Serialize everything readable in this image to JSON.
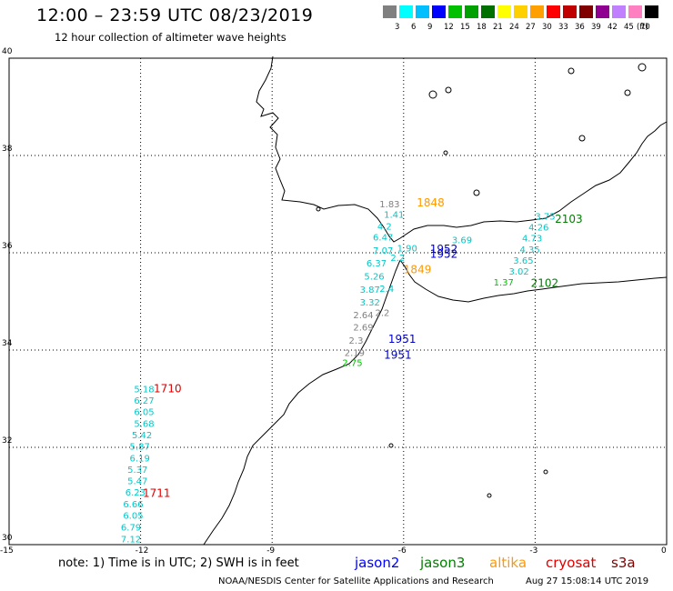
{
  "header": {
    "title": "12:00 – 23:59 UTC 08/23/2019",
    "subtitle": "12 hour collection of altimeter wave heights"
  },
  "legend": {
    "colors": [
      "#808080",
      "#00ffff",
      "#00bfff",
      "#0000ff",
      "#00c000",
      "#00a000",
      "#007000",
      "#ffff00",
      "#ffd000",
      "#ffa000",
      "#ff0000",
      "#c00000",
      "#800000",
      "#900090",
      "#c080ff",
      "#ff80c0",
      "#000000"
    ],
    "ticks": [
      "3",
      "6",
      "9",
      "12",
      "15",
      "18",
      "21",
      "24",
      "27",
      "30",
      "33",
      "36",
      "39",
      "42",
      "45",
      "70"
    ],
    "unit": "(ft)"
  },
  "axes": {
    "lon_ticks": [
      "-15",
      "-12",
      "-9",
      "-6",
      "-3",
      "0"
    ],
    "lat_ticks": [
      "40",
      "38",
      "36",
      "34",
      "32",
      "30"
    ],
    "lon_range": [
      -15,
      0
    ],
    "lat_range": [
      30,
      40
    ]
  },
  "observations": [
    {
      "lon": -6.55,
      "lat": 36.93,
      "text": "1.83",
      "color": "#808080"
    },
    {
      "lon": -6.45,
      "lat": 36.72,
      "text": "1.41",
      "color": "#00c8c8"
    },
    {
      "lon": -6.6,
      "lat": 36.48,
      "text": "4.2",
      "color": "#00c8c8"
    },
    {
      "lon": -6.7,
      "lat": 36.25,
      "text": "6.47",
      "color": "#00c8c8"
    },
    {
      "lon": -6.7,
      "lat": 35.98,
      "text": "7.07",
      "color": "#00c8c8"
    },
    {
      "lon": -6.85,
      "lat": 35.72,
      "text": "6.37",
      "color": "#00c8c8"
    },
    {
      "lon": -6.9,
      "lat": 35.45,
      "text": "5.26",
      "color": "#00c8c8"
    },
    {
      "lon": -7.0,
      "lat": 35.18,
      "text": "3.87",
      "color": "#00c8c8"
    },
    {
      "lon": -7.0,
      "lat": 34.92,
      "text": "3.32",
      "color": "#00c8c8"
    },
    {
      "lon": -7.15,
      "lat": 34.65,
      "text": "2.64",
      "color": "#808080"
    },
    {
      "lon": -7.15,
      "lat": 34.4,
      "text": "2.69",
      "color": "#808080"
    },
    {
      "lon": -7.25,
      "lat": 34.13,
      "text": "2.3",
      "color": "#808080"
    },
    {
      "lon": -7.35,
      "lat": 33.88,
      "text": "2.19",
      "color": "#808080"
    },
    {
      "lon": -7.4,
      "lat": 33.67,
      "text": "2.75",
      "color": "#00c000"
    },
    {
      "lon": -6.65,
      "lat": 34.7,
      "text": "2.2",
      "color": "#808080"
    },
    {
      "lon": -6.55,
      "lat": 35.2,
      "text": "2.4",
      "color": "#00c8c8"
    },
    {
      "lon": -6.15,
      "lat": 36.03,
      "text": "1.90",
      "color": "#00c8c8"
    },
    {
      "lon": -6.3,
      "lat": 35.83,
      "text": "2.2",
      "color": "#00c8c8"
    },
    {
      "lon": -4.9,
      "lat": 36.2,
      "text": "3.69",
      "color": "#00c8c8"
    },
    {
      "lon": -3.0,
      "lat": 36.68,
      "text": "3.75",
      "color": "#00c8c8"
    },
    {
      "lon": -3.15,
      "lat": 36.46,
      "text": "4.26",
      "color": "#00c8c8"
    },
    {
      "lon": -3.3,
      "lat": 36.23,
      "text": "4.73",
      "color": "#00c8c8"
    },
    {
      "lon": -3.35,
      "lat": 36.0,
      "text": "4.35",
      "color": "#00c8c8"
    },
    {
      "lon": -3.5,
      "lat": 35.78,
      "text": "3.65",
      "color": "#00c8c8"
    },
    {
      "lon": -3.6,
      "lat": 35.55,
      "text": "3.02",
      "color": "#00c8c8"
    },
    {
      "lon": -3.95,
      "lat": 35.33,
      "text": "1.37",
      "color": "#00c000"
    },
    {
      "lon": -12.15,
      "lat": 33.13,
      "text": "5.18",
      "color": "#00c8c8"
    },
    {
      "lon": -12.15,
      "lat": 32.9,
      "text": "6.27",
      "color": "#00c8c8"
    },
    {
      "lon": -12.15,
      "lat": 32.66,
      "text": "6.05",
      "color": "#00c8c8"
    },
    {
      "lon": -12.15,
      "lat": 32.42,
      "text": "5.68",
      "color": "#00c8c8"
    },
    {
      "lon": -12.2,
      "lat": 32.19,
      "text": "5.42",
      "color": "#00c8c8"
    },
    {
      "lon": -12.25,
      "lat": 31.95,
      "text": "5.87",
      "color": "#00c8c8"
    },
    {
      "lon": -12.25,
      "lat": 31.71,
      "text": "6.19",
      "color": "#00c8c8"
    },
    {
      "lon": -12.3,
      "lat": 31.48,
      "text": "5.37",
      "color": "#00c8c8"
    },
    {
      "lon": -12.3,
      "lat": 31.24,
      "text": "5.47",
      "color": "#00c8c8"
    },
    {
      "lon": -12.35,
      "lat": 31.01,
      "text": "6.23",
      "color": "#00c8c8"
    },
    {
      "lon": -12.4,
      "lat": 30.77,
      "text": "6.66",
      "color": "#00c8c8"
    },
    {
      "lon": -12.4,
      "lat": 30.53,
      "text": "6.05",
      "color": "#00c8c8"
    },
    {
      "lon": -12.45,
      "lat": 30.29,
      "text": "6.79",
      "color": "#00c8c8"
    },
    {
      "lon": -12.45,
      "lat": 30.05,
      "text": "7.12",
      "color": "#00c8c8"
    }
  ],
  "time_labels": [
    {
      "lon": -5.7,
      "lat": 36.95,
      "text": "1848",
      "color": "#ff9900"
    },
    {
      "lon": -6.0,
      "lat": 35.58,
      "text": "1849",
      "color": "#ff9900"
    },
    {
      "lon": -5.4,
      "lat": 36.0,
      "text": "1952",
      "color": "#0000c8"
    },
    {
      "lon": -5.4,
      "lat": 35.9,
      "text": "1952",
      "color": "#0000c8"
    },
    {
      "lon": -6.35,
      "lat": 34.15,
      "text": "1951",
      "color": "#0000c8"
    },
    {
      "lon": -6.45,
      "lat": 33.82,
      "text": "1951",
      "color": "#0000c8"
    },
    {
      "lon": -2.55,
      "lat": 36.62,
      "text": "2103",
      "color": "#008000"
    },
    {
      "lon": -3.1,
      "lat": 35.3,
      "text": "2102",
      "color": "#008000"
    },
    {
      "lon": -11.7,
      "lat": 33.13,
      "text": "1710",
      "color": "#e00000"
    },
    {
      "lon": -11.95,
      "lat": 30.98,
      "text": "1711",
      "color": "#e00000"
    }
  ],
  "footer": {
    "note": "note: 1) Time is in UTC; 2) SWH is in feet",
    "satellites": [
      {
        "name": "jason2",
        "color": "#0000ff"
      },
      {
        "name": "jason3",
        "color": "#008000"
      },
      {
        "name": "altika",
        "color": "#ff9900"
      },
      {
        "name": "cryosat",
        "color": "#e00000"
      },
      {
        "name": "s3a",
        "color": "#800000"
      }
    ],
    "credit": "NOAA/NESDIS Center for Satellite Applications and Research",
    "timestamp": "Aug 27 15:08:14 UTC 2019"
  }
}
